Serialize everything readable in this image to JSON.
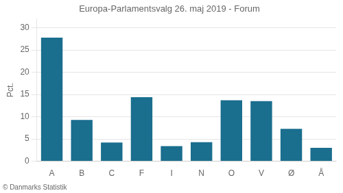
{
  "chart_data": {
    "type": "bar",
    "title": "Europa-Parlamentsvalg 26. maj 2019 - Forum",
    "categories": [
      "A",
      "B",
      "C",
      "F",
      "I",
      "N",
      "O",
      "V",
      "Ø",
      "Å"
    ],
    "values": [
      27.8,
      9.3,
      4.2,
      14.4,
      3.4,
      4.3,
      13.7,
      13.5,
      7.3,
      3.0
    ],
    "color": "#1a6e8e",
    "ylabel": "Pct.",
    "ylim": [
      0,
      32
    ],
    "yticks": [
      0,
      5,
      10,
      15,
      20,
      25,
      30
    ],
    "grid": true,
    "annotations": [
      "© Danmarks Statistik"
    ]
  }
}
